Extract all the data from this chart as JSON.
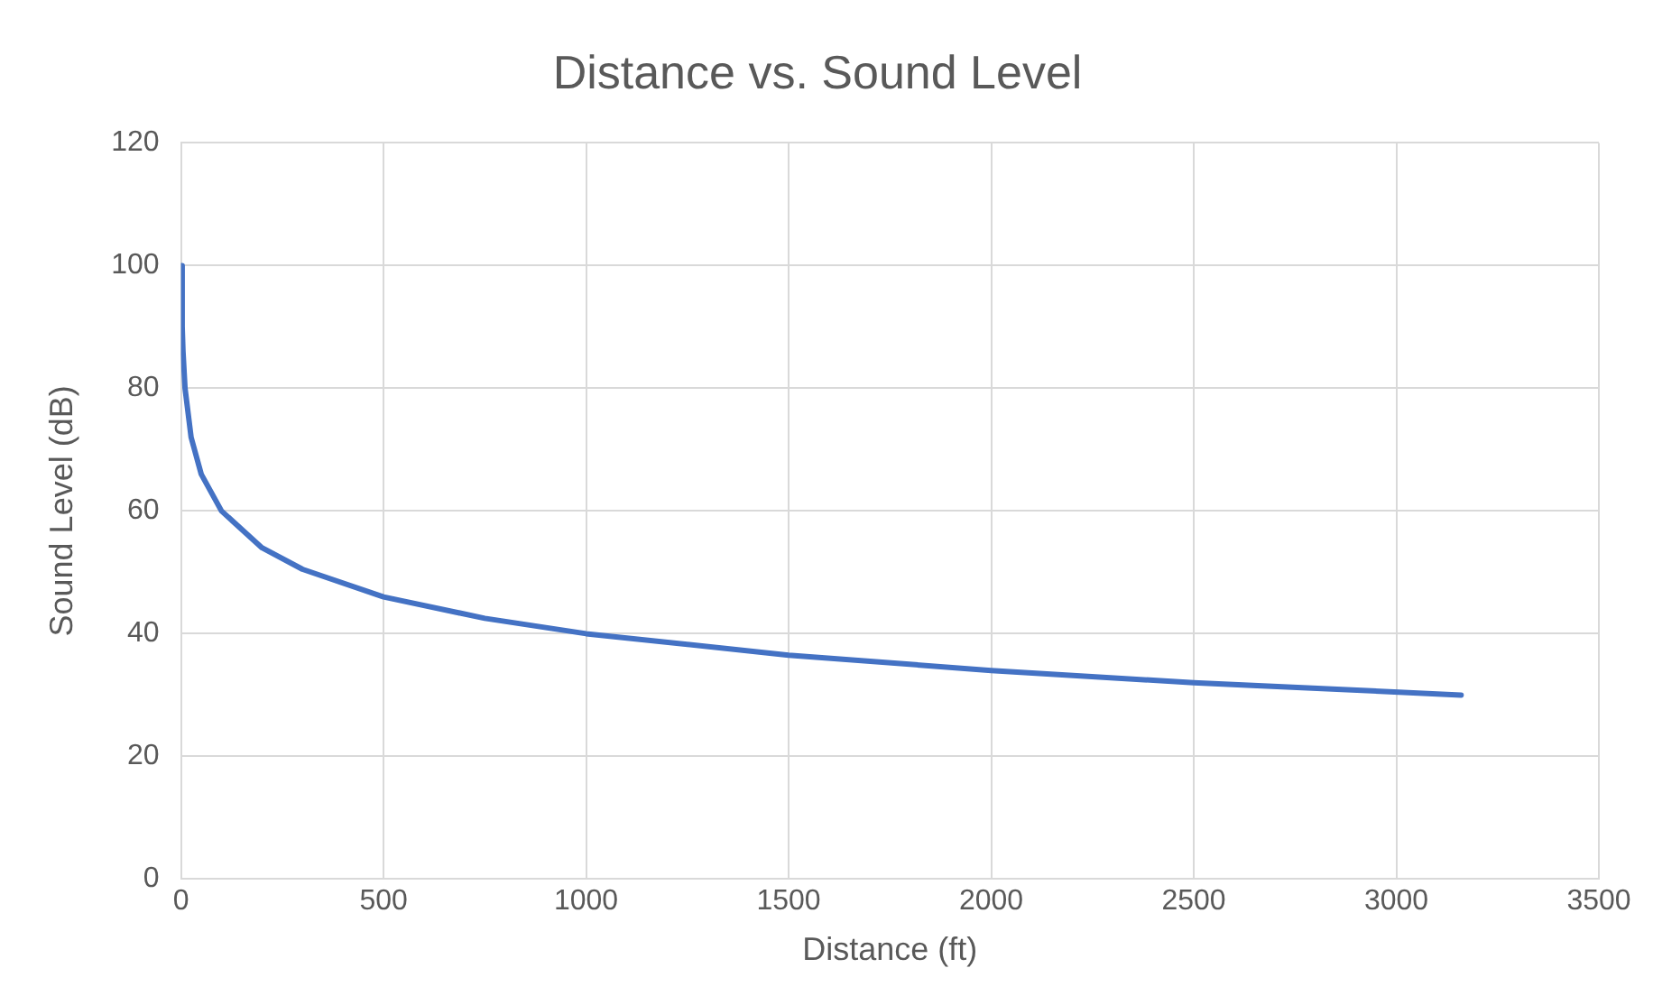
{
  "chart_data": {
    "type": "line",
    "title": "Distance vs. Sound Level",
    "xlabel": "Distance (ft)",
    "ylabel": "Sound Level (dB)",
    "x": [
      1,
      3,
      5,
      10,
      25,
      50,
      100,
      200,
      300,
      500,
      750,
      1000,
      1500,
      2000,
      2500,
      3160
    ],
    "series": [
      {
        "color": "#4472c4",
        "values": [
          100,
          90,
          86,
          80,
          72,
          66,
          60,
          54,
          50.5,
          46,
          42.5,
          40,
          36.5,
          34,
          32,
          30
        ]
      }
    ],
    "xlim": [
      0,
      3500
    ],
    "xticks": [
      0,
      500,
      1000,
      1500,
      2000,
      2500,
      3000,
      3500
    ],
    "ylim": [
      0,
      120
    ],
    "yticks": [
      0,
      20,
      40,
      60,
      80,
      100,
      120
    ],
    "grid": true,
    "legend": false,
    "marker": "none",
    "line_style": "solid"
  }
}
